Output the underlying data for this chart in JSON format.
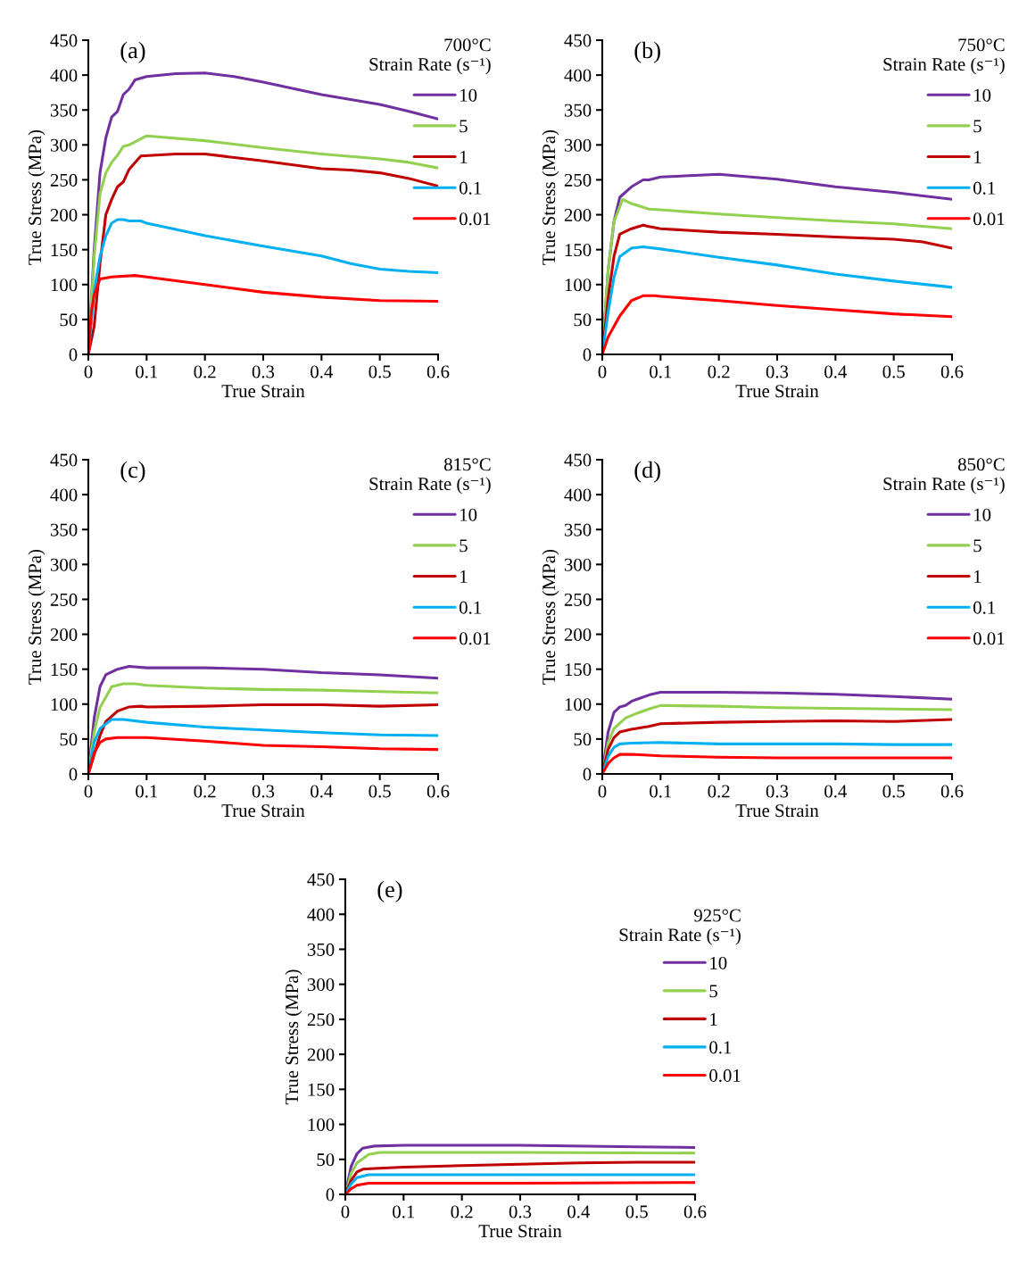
{
  "chart_data": [
    {
      "type": "line",
      "annotations": [
        "(a)"
      ],
      "xlabel": "True Strain",
      "ylabel": "True Stress (MPa)",
      "legend_title": "700°C\nStrain Rate (s⁻¹)",
      "legend": "top right",
      "xlim": [
        0,
        0.6
      ],
      "ylim": [
        0,
        450
      ],
      "xticks": [
        0,
        0.1,
        0.2,
        0.3,
        0.4,
        0.5,
        0.6
      ],
      "yticks": [
        0,
        50,
        100,
        150,
        200,
        250,
        300,
        350,
        400,
        450
      ],
      "series": [
        {
          "name": "10",
          "color": "#7030a0",
          "x": [
            0,
            0.01,
            0.02,
            0.03,
            0.04,
            0.05,
            0.06,
            0.07,
            0.08,
            0.1,
            0.15,
            0.2,
            0.25,
            0.3,
            0.4,
            0.5,
            0.55,
            0.6
          ],
          "values": [
            0,
            150,
            260,
            310,
            340,
            348,
            372,
            380,
            393,
            398,
            402,
            403,
            398,
            390,
            372,
            358,
            348,
            337
          ]
        },
        {
          "name": "5",
          "color": "#92d050",
          "x": [
            0,
            0.01,
            0.02,
            0.03,
            0.04,
            0.05,
            0.06,
            0.07,
            0.1,
            0.2,
            0.3,
            0.4,
            0.5,
            0.55,
            0.6
          ],
          "values": [
            0,
            140,
            230,
            260,
            275,
            285,
            298,
            300,
            313,
            306,
            296,
            287,
            280,
            275,
            267
          ]
        },
        {
          "name": "1",
          "color": "#c00000",
          "x": [
            0,
            0.01,
            0.02,
            0.03,
            0.04,
            0.05,
            0.06,
            0.07,
            0.09,
            0.15,
            0.2,
            0.3,
            0.4,
            0.45,
            0.5,
            0.55,
            0.6
          ],
          "values": [
            0,
            40,
            130,
            200,
            222,
            240,
            247,
            265,
            284,
            287,
            287,
            277,
            266,
            264,
            260,
            252,
            241
          ]
        },
        {
          "name": "0.1",
          "color": "#00b0f0",
          "x": [
            0,
            0.01,
            0.02,
            0.03,
            0.04,
            0.05,
            0.06,
            0.07,
            0.09,
            0.1,
            0.2,
            0.3,
            0.4,
            0.45,
            0.5,
            0.55,
            0.6
          ],
          "values": [
            0,
            90,
            140,
            170,
            188,
            193,
            193,
            191,
            191,
            188,
            170,
            155,
            141,
            130,
            122,
            119,
            117
          ]
        },
        {
          "name": "0.01",
          "color": "#ff0000",
          "x": [
            0,
            0.005,
            0.01,
            0.02,
            0.04,
            0.08,
            0.1,
            0.2,
            0.3,
            0.4,
            0.5,
            0.6
          ],
          "values": [
            0,
            60,
            85,
            108,
            111,
            113,
            111,
            100,
            89,
            82,
            77,
            76
          ]
        }
      ]
    },
    {
      "type": "line",
      "annotations": [
        "(b)"
      ],
      "xlabel": "True Strain",
      "ylabel": "True Stress (MPa)",
      "legend_title": "750°C\nStrain Rate (s⁻¹)",
      "legend": "top right",
      "xlim": [
        0,
        0.6
      ],
      "ylim": [
        0,
        450
      ],
      "xticks": [
        0,
        0.1,
        0.2,
        0.3,
        0.4,
        0.5,
        0.6
      ],
      "yticks": [
        0,
        50,
        100,
        150,
        200,
        250,
        300,
        350,
        400,
        450
      ],
      "series": [
        {
          "name": "10",
          "color": "#7030a0",
          "x": [
            0,
            0.01,
            0.02,
            0.03,
            0.05,
            0.07,
            0.08,
            0.1,
            0.2,
            0.3,
            0.4,
            0.5,
            0.6
          ],
          "values": [
            0,
            120,
            190,
            225,
            240,
            250,
            250,
            254,
            258,
            251,
            240,
            232,
            222
          ]
        },
        {
          "name": "5",
          "color": "#92d050",
          "x": [
            0,
            0.01,
            0.02,
            0.035,
            0.05,
            0.08,
            0.1,
            0.2,
            0.3,
            0.4,
            0.5,
            0.6
          ],
          "values": [
            0,
            120,
            190,
            222,
            216,
            208,
            207,
            201,
            196,
            191,
            187,
            180
          ]
        },
        {
          "name": "1",
          "color": "#c00000",
          "x": [
            0,
            0.01,
            0.02,
            0.03,
            0.05,
            0.07,
            0.08,
            0.1,
            0.2,
            0.3,
            0.4,
            0.5,
            0.55,
            0.6
          ],
          "values": [
            0,
            80,
            140,
            172,
            180,
            185,
            183,
            180,
            175,
            172,
            168,
            165,
            161,
            152
          ]
        },
        {
          "name": "0.1",
          "color": "#00b0f0",
          "x": [
            0,
            0.01,
            0.02,
            0.03,
            0.05,
            0.07,
            0.1,
            0.2,
            0.3,
            0.4,
            0.5,
            0.6
          ],
          "values": [
            0,
            60,
            110,
            140,
            152,
            154,
            151,
            139,
            128,
            115,
            105,
            96
          ]
        },
        {
          "name": "0.01",
          "color": "#ff0000",
          "x": [
            0,
            0.01,
            0.02,
            0.03,
            0.05,
            0.07,
            0.09,
            0.1,
            0.2,
            0.3,
            0.4,
            0.5,
            0.6
          ],
          "values": [
            0,
            25,
            40,
            55,
            77,
            84,
            84,
            83,
            77,
            70,
            64,
            58,
            54
          ]
        }
      ]
    },
    {
      "type": "line",
      "annotations": [
        "(c)"
      ],
      "xlabel": "True Strain",
      "ylabel": "True Stress (MPa)",
      "legend_title": "815°C\nStrain Rate (s⁻¹)",
      "legend": "top right",
      "xlim": [
        0,
        0.6
      ],
      "ylim": [
        0,
        450
      ],
      "xticks": [
        0,
        0.1,
        0.2,
        0.3,
        0.4,
        0.5,
        0.6
      ],
      "yticks": [
        0,
        50,
        100,
        150,
        200,
        250,
        300,
        350,
        400,
        450
      ],
      "series": [
        {
          "name": "10",
          "color": "#7030a0",
          "x": [
            0,
            0.01,
            0.02,
            0.03,
            0.05,
            0.07,
            0.1,
            0.2,
            0.3,
            0.4,
            0.5,
            0.6
          ],
          "values": [
            0,
            80,
            125,
            142,
            150,
            154,
            152,
            152,
            150,
            145,
            142,
            137
          ]
        },
        {
          "name": "5",
          "color": "#92d050",
          "x": [
            0,
            0.01,
            0.02,
            0.04,
            0.06,
            0.08,
            0.1,
            0.2,
            0.3,
            0.4,
            0.5,
            0.6
          ],
          "values": [
            0,
            60,
            95,
            125,
            129,
            129,
            127,
            123,
            121,
            120,
            118,
            116
          ]
        },
        {
          "name": "1",
          "color": "#c00000",
          "x": [
            0,
            0.02,
            0.03,
            0.05,
            0.07,
            0.09,
            0.1,
            0.2,
            0.3,
            0.4,
            0.5,
            0.6
          ],
          "values": [
            0,
            55,
            75,
            90,
            96,
            97,
            96,
            97,
            99,
            99,
            97,
            99
          ]
        },
        {
          "name": "0.1",
          "color": "#00b0f0",
          "x": [
            0,
            0.01,
            0.02,
            0.04,
            0.06,
            0.1,
            0.2,
            0.3,
            0.4,
            0.5,
            0.6
          ],
          "values": [
            0,
            45,
            65,
            78,
            78,
            74,
            67,
            63,
            59,
            56,
            55
          ]
        },
        {
          "name": "0.01",
          "color": "#ff0000",
          "x": [
            0,
            0.01,
            0.02,
            0.03,
            0.05,
            0.1,
            0.2,
            0.3,
            0.4,
            0.5,
            0.6
          ],
          "values": [
            0,
            30,
            45,
            50,
            52,
            52,
            47,
            41,
            39,
            36,
            35
          ]
        }
      ]
    },
    {
      "type": "line",
      "annotations": [
        "(d)"
      ],
      "xlabel": "True Strain",
      "ylabel": "True Stress (MPa)",
      "legend_title": "850°C\nStrain Rate (s⁻¹)",
      "legend": "top right",
      "xlim": [
        0,
        0.6
      ],
      "ylim": [
        0,
        450
      ],
      "xticks": [
        0,
        0.1,
        0.2,
        0.3,
        0.4,
        0.5,
        0.6
      ],
      "yticks": [
        0,
        50,
        100,
        150,
        200,
        250,
        300,
        350,
        400,
        450
      ],
      "series": [
        {
          "name": "10",
          "color": "#7030a0",
          "x": [
            0,
            0.01,
            0.02,
            0.03,
            0.04,
            0.05,
            0.06,
            0.08,
            0.1,
            0.2,
            0.3,
            0.4,
            0.5,
            0.6
          ],
          "values": [
            0,
            60,
            88,
            96,
            98,
            104,
            107,
            113,
            117,
            117,
            116,
            114,
            111,
            107
          ]
        },
        {
          "name": "5",
          "color": "#92d050",
          "x": [
            0,
            0.01,
            0.02,
            0.04,
            0.06,
            0.08,
            0.1,
            0.2,
            0.3,
            0.4,
            0.5,
            0.6
          ],
          "values": [
            0,
            45,
            65,
            80,
            87,
            93,
            98,
            97,
            95,
            94,
            93,
            92
          ]
        },
        {
          "name": "1",
          "color": "#c00000",
          "x": [
            0,
            0.01,
            0.02,
            0.03,
            0.05,
            0.08,
            0.1,
            0.2,
            0.3,
            0.4,
            0.5,
            0.6
          ],
          "values": [
            0,
            35,
            52,
            60,
            64,
            68,
            72,
            74,
            75,
            76,
            75,
            78
          ]
        },
        {
          "name": "0.1",
          "color": "#00b0f0",
          "x": [
            0,
            0.01,
            0.02,
            0.03,
            0.05,
            0.1,
            0.2,
            0.3,
            0.4,
            0.5,
            0.6
          ],
          "values": [
            0,
            25,
            38,
            43,
            44,
            45,
            43,
            43,
            43,
            42,
            42
          ]
        },
        {
          "name": "0.01",
          "color": "#ff0000",
          "x": [
            0,
            0.01,
            0.02,
            0.03,
            0.05,
            0.1,
            0.2,
            0.3,
            0.4,
            0.5,
            0.6
          ],
          "values": [
            0,
            15,
            23,
            28,
            28,
            26,
            24,
            23,
            23,
            23,
            23
          ]
        }
      ]
    },
    {
      "type": "line",
      "annotations": [
        "(e)"
      ],
      "xlabel": "True Strain",
      "ylabel": "True Stress (MPa)",
      "legend_title": "925°C\nStrain Rate (s⁻¹)",
      "legend": "top right",
      "xlim": [
        0,
        0.6
      ],
      "ylim": [
        0,
        450
      ],
      "xticks": [
        0,
        0.1,
        0.2,
        0.3,
        0.4,
        0.5,
        0.6
      ],
      "yticks": [
        0,
        50,
        100,
        150,
        200,
        250,
        300,
        350,
        400,
        450
      ],
      "series": [
        {
          "name": "10",
          "color": "#7030a0",
          "x": [
            0,
            0.01,
            0.02,
            0.03,
            0.05,
            0.1,
            0.3,
            0.5,
            0.6
          ],
          "values": [
            0,
            40,
            58,
            66,
            69,
            70,
            70,
            68,
            67
          ]
        },
        {
          "name": "5",
          "color": "#92d050",
          "x": [
            0,
            0.01,
            0.02,
            0.04,
            0.06,
            0.1,
            0.3,
            0.6
          ],
          "values": [
            0,
            30,
            45,
            57,
            60,
            60,
            60,
            59
          ]
        },
        {
          "name": "1",
          "color": "#c00000",
          "x": [
            0,
            0.01,
            0.02,
            0.03,
            0.05,
            0.1,
            0.2,
            0.3,
            0.4,
            0.5,
            0.6
          ],
          "values": [
            0,
            20,
            32,
            36,
            37,
            39,
            41,
            43,
            45,
            46,
            46
          ]
        },
        {
          "name": "0.1",
          "color": "#00b0f0",
          "x": [
            0,
            0.01,
            0.02,
            0.04,
            0.1,
            0.3,
            0.6
          ],
          "values": [
            0,
            15,
            24,
            28,
            28,
            28,
            28
          ]
        },
        {
          "name": "0.01",
          "color": "#ff0000",
          "x": [
            0,
            0.01,
            0.02,
            0.04,
            0.1,
            0.3,
            0.6
          ],
          "values": [
            0,
            8,
            13,
            16,
            16,
            16,
            17
          ]
        }
      ]
    }
  ]
}
